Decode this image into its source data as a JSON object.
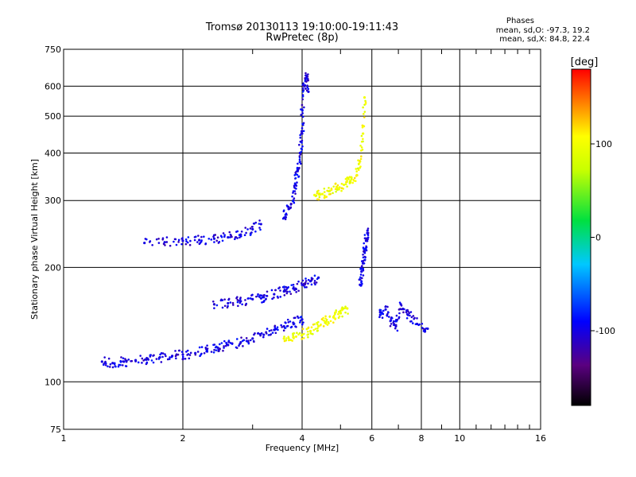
{
  "chart_data": {
    "type": "scatter",
    "title": "Tromsø 20130113 19:10:00-19:11:43",
    "subtitle": "RwPretec (8p)",
    "xlabel": "Frequency [MHz]",
    "ylabel": "Stationary phase Virtual Height [km]",
    "x_scale": "log",
    "y_scale": "log",
    "xlim": [
      1,
      16
    ],
    "ylim": [
      75,
      750
    ],
    "x_ticks": [
      1,
      2,
      4,
      6,
      8,
      10,
      16
    ],
    "y_ticks": [
      75,
      100,
      200,
      300,
      400,
      500,
      600,
      750
    ],
    "grid": true,
    "annotation": {
      "heading": "Phases",
      "line1": "mean, sd,O:  -97.3, 19.2",
      "line2": "mean, sd,X:  84.8, 22.4"
    },
    "colorbar": {
      "label": "[deg]",
      "ticks": [
        100,
        0,
        -100
      ],
      "range": [
        -180,
        180
      ]
    },
    "traces": [
      {
        "name_hint": "o-low-band",
        "phase": -100,
        "x": [
          1.25,
          1.33,
          1.42,
          1.52,
          1.63,
          1.75,
          1.88,
          2.0,
          2.15,
          2.3,
          2.45,
          2.6,
          2.8,
          3.0,
          3.2,
          3.4,
          3.6,
          3.8,
          4.0
        ],
        "y": [
          113,
          112,
          113,
          114,
          115,
          116,
          117,
          118,
          119,
          121,
          123,
          125,
          127,
          130,
          133,
          137,
          140,
          143,
          146
        ]
      },
      {
        "name_hint": "o-mid-band",
        "phase": -100,
        "x": [
          2.4,
          2.6,
          2.8,
          3.0,
          3.2,
          3.4,
          3.6,
          3.8,
          4.0,
          4.2,
          4.4
        ],
        "y": [
          160,
          161,
          163,
          165,
          167,
          170,
          173,
          176,
          180,
          184,
          188
        ]
      },
      {
        "name_hint": "o-f-trace",
        "phase": -100,
        "x": [
          1.6,
          1.8,
          2.0,
          2.2,
          2.4,
          2.6,
          2.8,
          3.0,
          3.15
        ],
        "y": [
          232,
          233,
          235,
          236,
          238,
          240,
          244,
          252,
          260
        ]
      },
      {
        "name_hint": "o-f-cusp",
        "phase": -100,
        "x": [
          3.6,
          3.7,
          3.8,
          3.85,
          3.9,
          3.95,
          4.0,
          4.0,
          4.05,
          4.1,
          4.15
        ],
        "y": [
          270,
          285,
          300,
          330,
          360,
          400,
          450,
          520,
          600,
          640,
          580
        ]
      },
      {
        "name_hint": "x-cusp",
        "phase": 100,
        "x": [
          4.3,
          4.5,
          4.7,
          4.9,
          5.1,
          5.3,
          5.5,
          5.6,
          5.7,
          5.75
        ],
        "y": [
          310,
          312,
          318,
          325,
          330,
          338,
          350,
          380,
          450,
          560
        ]
      },
      {
        "name_hint": "x-low",
        "phase": 100,
        "x": [
          3.6,
          3.8,
          4.0,
          4.2,
          4.4,
          4.6,
          4.8,
          5.0,
          5.2
        ],
        "y": [
          130,
          131,
          133,
          136,
          140,
          144,
          148,
          152,
          156
        ]
      },
      {
        "name_hint": "o-high-freq",
        "phase": -100,
        "x": [
          5.6,
          5.65,
          5.7,
          5.75,
          5.8,
          5.85
        ],
        "y": [
          180,
          195,
          205,
          220,
          235,
          250
        ]
      },
      {
        "name_hint": "o-scattered-right",
        "phase": -100,
        "x": [
          6.3,
          6.5,
          6.7,
          6.9,
          7.1,
          7.4,
          7.8,
          8.3
        ],
        "y": [
          150,
          155,
          145,
          140,
          160,
          150,
          142,
          138
        ]
      }
    ]
  }
}
